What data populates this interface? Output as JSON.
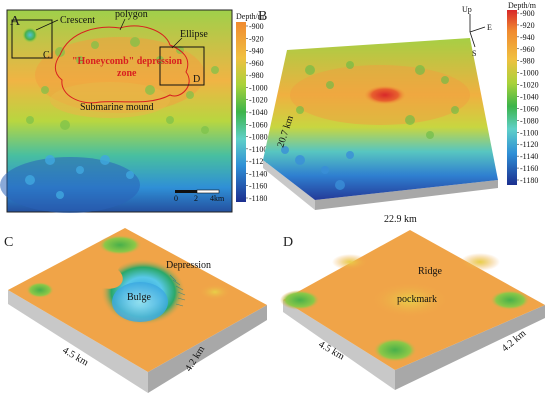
{
  "panels": {
    "a": {
      "letter": "A",
      "labels": {
        "crescent": "Crescent",
        "polygon": "polygon",
        "ellipse": "Ellipse",
        "honeycomb_line1": "\"Honeycomb\" depression",
        "honeycomb_line2": "zone",
        "submarine_mound": "Submarine mound",
        "box_c": "C",
        "box_d": "D"
      },
      "scalebar": {
        "t0": "0",
        "t1": "2",
        "t2": "4km"
      },
      "colorbar": {
        "unit": "Depth/m",
        "ticks": [
          "-900",
          "-920",
          "-940",
          "-960",
          "-980",
          "-1000",
          "-1020",
          "-1040",
          "-1060",
          "-1080",
          "-1100",
          "-1120",
          "-1140",
          "-1160",
          "-1180"
        ]
      }
    },
    "b": {
      "letter": "B",
      "compass": {
        "up": "Up",
        "e": "E",
        "s": "S"
      },
      "dim_side": "20.7 km",
      "dim_front": "22.9 km",
      "colorbar": {
        "unit": "Depth/m",
        "ticks": [
          "-900",
          "-920",
          "-940",
          "-960",
          "-980",
          "-1000",
          "-1020",
          "-1040",
          "-1060",
          "-1080",
          "-1100",
          "-1120",
          "-1140",
          "-1160",
          "-1180"
        ]
      }
    },
    "c": {
      "letter": "C",
      "labels": {
        "depression": "Depression",
        "bulge": "Bulge"
      },
      "dim_left": "4.5 km",
      "dim_right": "4.2 km"
    },
    "d": {
      "letter": "D",
      "labels": {
        "ridge": "Ridge",
        "pockmark": "pockmark"
      },
      "dim_left": "4.5 km",
      "dim_right": "4.2 km"
    }
  },
  "colors": {
    "deep": "#1c2f8f",
    "mid_blue": "#2f8fd6",
    "cyan": "#5fd0e0",
    "green": "#3cb44a",
    "lime": "#a8d23a",
    "yellow": "#f0c93a",
    "orange": "#f0a040",
    "red": "#d8282a",
    "annotation_red": "#d81f1f"
  }
}
